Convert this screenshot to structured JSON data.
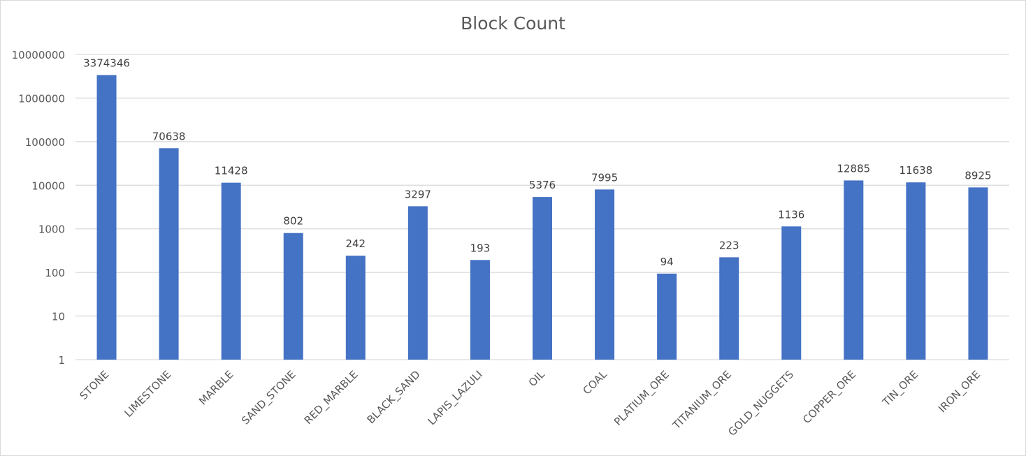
{
  "chart_data": {
    "type": "bar",
    "title": "Block Count",
    "xlabel": "",
    "ylabel": "",
    "yscale": "log",
    "ylim": [
      1,
      10000000
    ],
    "yticks": [
      "1",
      "10",
      "100",
      "1000",
      "10000",
      "100000",
      "1000000",
      "10000000"
    ],
    "grid": true,
    "legend": "none",
    "bar_color": "#4472c4",
    "categories": [
      "STONE",
      "LIMESTONE",
      "MARBLE",
      "SAND_STONE",
      "RED_MARBLE",
      "BLACK_SAND",
      "LAPIS_LAZULI",
      "OIL",
      "COAL",
      "PLATIUM_ORE",
      "TITANIUM_ORE",
      "GOLD_NUGGETS",
      "COPPER_ORE",
      "TIN_ORE",
      "IRON_ORE"
    ],
    "values": [
      3374346,
      70638,
      11428,
      802,
      242,
      3297,
      193,
      5376,
      7995,
      94,
      223,
      1136,
      12885,
      11638,
      8925
    ]
  }
}
